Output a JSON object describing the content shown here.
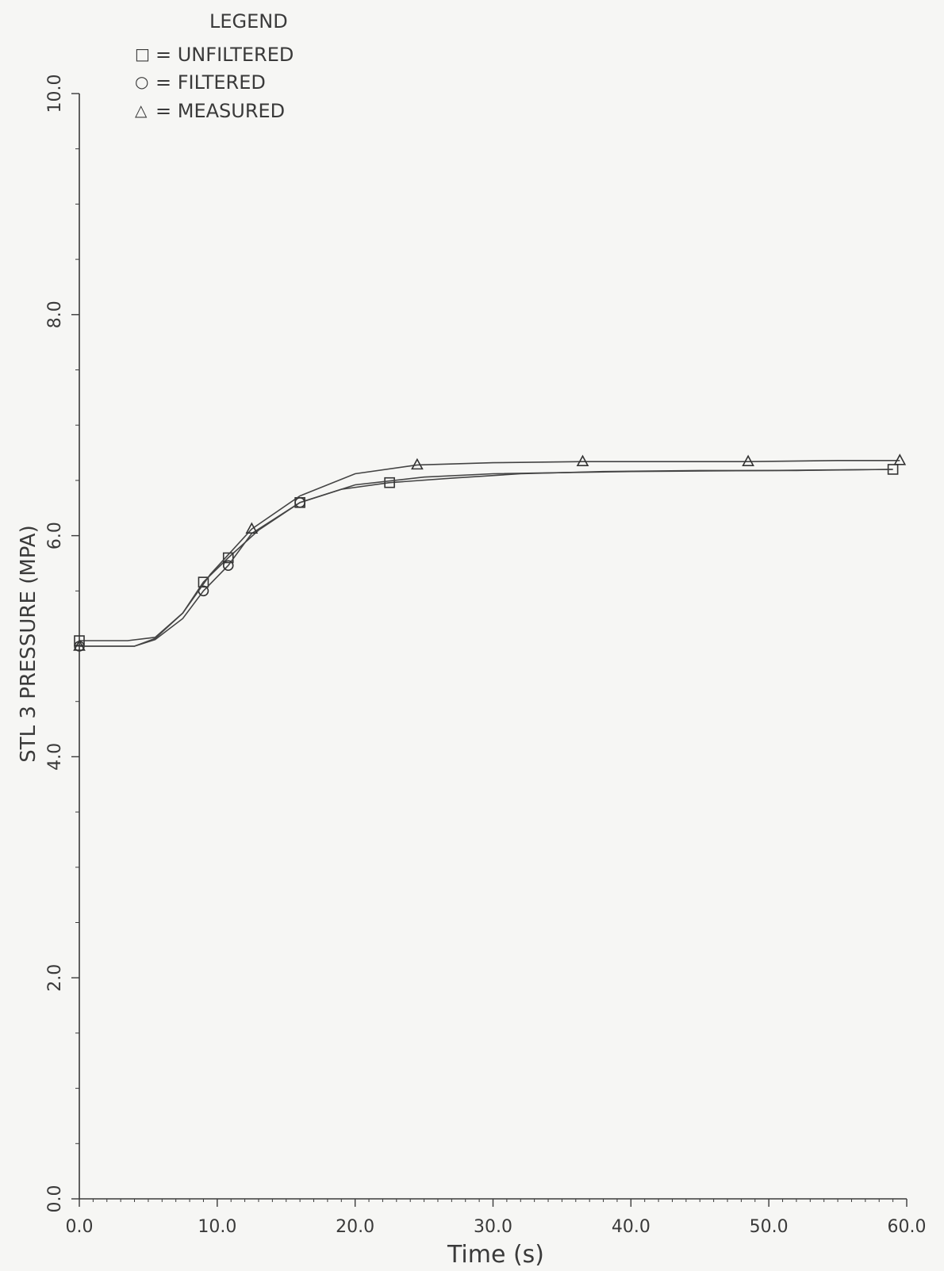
{
  "chart_data": {
    "type": "line",
    "xlabel": "Time (s)",
    "ylabel": "STL 3 PRESSURE (MPA)",
    "xlim": [
      0,
      60
    ],
    "ylim": [
      0,
      10
    ],
    "x_ticks": [
      0,
      10,
      20,
      30,
      40,
      50,
      60
    ],
    "x_tick_labels": [
      "0.0",
      "10.0",
      "20.0",
      "30.0",
      "40.0",
      "50.0",
      "60.0"
    ],
    "y_ticks": [
      0,
      2,
      4,
      6,
      8,
      10
    ],
    "y_tick_labels": [
      "0.0",
      "2.0",
      "4.0",
      "6.0",
      "8.0",
      "10.0"
    ],
    "grid": false,
    "legend": {
      "title": "LEGEND",
      "placement": "top-left",
      "entries": [
        {
          "symbol": "□",
          "marker": "square",
          "text": "= UNFILTERED"
        },
        {
          "symbol": "○",
          "marker": "circle",
          "text": "= FILTERED"
        },
        {
          "symbol": "△",
          "marker": "triangle",
          "text": "= MEASURED"
        }
      ]
    },
    "series": [
      {
        "name": "UNFILTERED",
        "marker": "square",
        "x": [
          0,
          3.5,
          5.5,
          7.5,
          9.0,
          10.8,
          13,
          16,
          19,
          22.5,
          27,
          32,
          38,
          45,
          52,
          59
        ],
        "y": [
          5.05,
          5.05,
          5.08,
          5.3,
          5.58,
          5.8,
          6.05,
          6.3,
          6.42,
          6.48,
          6.52,
          6.56,
          6.58,
          6.59,
          6.59,
          6.6
        ],
        "marker_x": [
          0,
          9.0,
          10.8,
          16.0,
          22.5,
          59.0
        ],
        "marker_y": [
          5.05,
          5.58,
          5.8,
          6.3,
          6.48,
          6.6
        ]
      },
      {
        "name": "FILTERED",
        "marker": "circle",
        "x": [
          0,
          4,
          5.5,
          7.5,
          9.0,
          10.8,
          12.5,
          16,
          20,
          25,
          30,
          40,
          50,
          59
        ],
        "y": [
          5.0,
          5.0,
          5.06,
          5.25,
          5.5,
          5.73,
          6.02,
          6.3,
          6.46,
          6.53,
          6.56,
          6.58,
          6.59,
          6.6
        ],
        "marker_x": [
          0,
          9.0,
          10.8,
          16.0
        ],
        "marker_y": [
          5.0,
          5.5,
          5.73,
          6.3
        ]
      },
      {
        "name": "MEASURED",
        "marker": "triangle",
        "x": [
          0,
          4,
          5.5,
          7.5,
          9.5,
          12.5,
          16,
          20,
          24.5,
          30,
          36.5,
          42,
          48.5,
          55,
          59.5
        ],
        "y": [
          5.0,
          5.0,
          5.07,
          5.3,
          5.65,
          6.06,
          6.36,
          6.56,
          6.64,
          6.66,
          6.67,
          6.67,
          6.67,
          6.68,
          6.68
        ],
        "marker_x": [
          0,
          12.5,
          24.5,
          36.5,
          48.5,
          59.5
        ],
        "marker_y": [
          5.0,
          6.06,
          6.64,
          6.67,
          6.67,
          6.68
        ]
      }
    ]
  }
}
